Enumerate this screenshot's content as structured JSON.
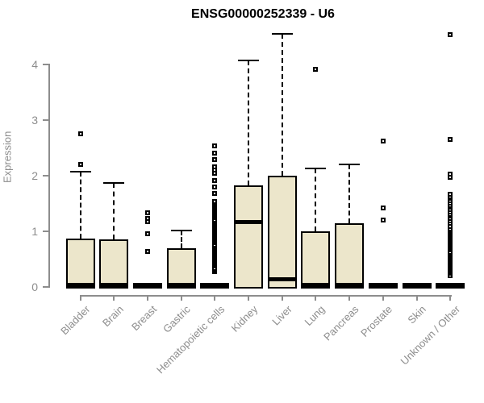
{
  "title": "ENSG00000252339 - U6",
  "y_axis": {
    "label": "Expression",
    "ticks": [
      0,
      1,
      2,
      3,
      4
    ]
  },
  "colors": {
    "box_fill": "#ECE6CB",
    "box_border": "#000000",
    "median": "#000000",
    "axis": "#8d8d8d",
    "tick_label": "#8d8d8d",
    "title": "#000000",
    "background": "#ffffff"
  },
  "chart_data": {
    "type": "boxplot",
    "title": "ENSG00000252339 - U6",
    "xlabel": "",
    "ylabel": "Expression",
    "ylim": [
      0,
      4.6
    ],
    "yticks": [
      0,
      1,
      2,
      3,
      4
    ],
    "grid": false,
    "legend": false,
    "categories": [
      "Bladder",
      "Brain",
      "Breast",
      "Gastric",
      "Hematopoietic cells",
      "Kidney",
      "Liver",
      "Lung",
      "Pancreas",
      "Prostate",
      "Skin",
      "Unknown / Other"
    ],
    "boxes": [
      {
        "category": "Bladder",
        "q1": 0,
        "median": 0.03,
        "q3": 0.87,
        "whisker_low": 0,
        "whisker_high": 2.07,
        "flat": false,
        "outliers": [
          2.21,
          2.75
        ]
      },
      {
        "category": "Brain",
        "q1": 0,
        "median": 0.03,
        "q3": 0.86,
        "whisker_low": 0,
        "whisker_high": 1.87,
        "flat": false,
        "outliers": []
      },
      {
        "category": "Breast",
        "q1": 0,
        "median": 0,
        "q3": 0,
        "whisker_low": 0,
        "whisker_high": 0,
        "flat": true,
        "outliers": [
          0.64,
          0.96,
          1.17,
          1.23,
          1.34
        ]
      },
      {
        "category": "Gastric",
        "q1": 0,
        "median": 0.04,
        "q3": 0.7,
        "whisker_low": 0,
        "whisker_high": 1.02,
        "flat": false,
        "outliers": []
      },
      {
        "category": "Hematopoietic cells",
        "q1": 0,
        "median": 0,
        "q3": 0,
        "whisker_low": 0,
        "whisker_high": 0,
        "flat": true,
        "outliers": [
          0.28,
          0.31,
          0.34,
          0.37,
          0.4,
          0.43,
          0.46,
          0.49,
          0.52,
          0.55,
          0.58,
          0.61,
          0.64,
          0.67,
          0.7,
          0.73,
          0.76,
          0.79,
          0.82,
          0.85,
          0.88,
          0.91,
          0.94,
          0.97,
          1.0,
          1.03,
          1.06,
          1.09,
          1.12,
          1.15,
          1.18,
          1.21,
          1.24,
          1.27,
          1.3,
          1.33,
          1.36,
          1.39,
          1.42,
          1.45,
          1.48,
          1.51,
          1.54,
          1.68,
          1.8,
          1.92,
          2.04,
          2.1,
          2.16,
          2.29,
          2.41,
          2.54
        ]
      },
      {
        "category": "Kidney",
        "q1": 0,
        "median": 1.17,
        "q3": 1.83,
        "whisker_low": 0,
        "whisker_high": 4.07,
        "flat": false,
        "outliers": []
      },
      {
        "category": "Liver",
        "q1": 0,
        "median": 0.14,
        "q3": 2.0,
        "whisker_low": 0,
        "whisker_high": 4.55,
        "flat": false,
        "outliers": []
      },
      {
        "category": "Lung",
        "q1": 0,
        "median": 0.03,
        "q3": 1.0,
        "whisker_low": 0,
        "whisker_high": 2.13,
        "flat": false,
        "outliers": [
          3.91
        ]
      },
      {
        "category": "Pancreas",
        "q1": 0,
        "median": 0.03,
        "q3": 1.15,
        "whisker_low": 0,
        "whisker_high": 2.21,
        "flat": false,
        "outliers": []
      },
      {
        "category": "Prostate",
        "q1": 0,
        "median": 0,
        "q3": 0,
        "whisker_low": 0,
        "whisker_high": 0,
        "flat": true,
        "outliers": [
          1.21,
          1.42,
          2.63
        ]
      },
      {
        "category": "Skin",
        "q1": 0,
        "median": 0,
        "q3": 0,
        "whisker_low": 0,
        "whisker_high": 0,
        "flat": true,
        "outliers": []
      },
      {
        "category": "Unknown / Other",
        "q1": 0,
        "median": 0,
        "q3": 0,
        "whisker_low": 0,
        "whisker_high": 0,
        "flat": true,
        "outliers": [
          0.21,
          0.24,
          0.27,
          0.3,
          0.33,
          0.36,
          0.39,
          0.42,
          0.45,
          0.48,
          0.51,
          0.54,
          0.57,
          0.6,
          0.63,
          0.66,
          0.69,
          0.72,
          0.75,
          0.78,
          0.81,
          0.84,
          0.87,
          0.9,
          0.93,
          0.96,
          0.99,
          1.02,
          1.05,
          1.08,
          1.15,
          1.19,
          1.23,
          1.27,
          1.31,
          1.35,
          1.39,
          1.43,
          1.47,
          1.51,
          1.55,
          1.59,
          1.63,
          1.67,
          1.97,
          2.03,
          2.65,
          4.54
        ]
      }
    ]
  }
}
